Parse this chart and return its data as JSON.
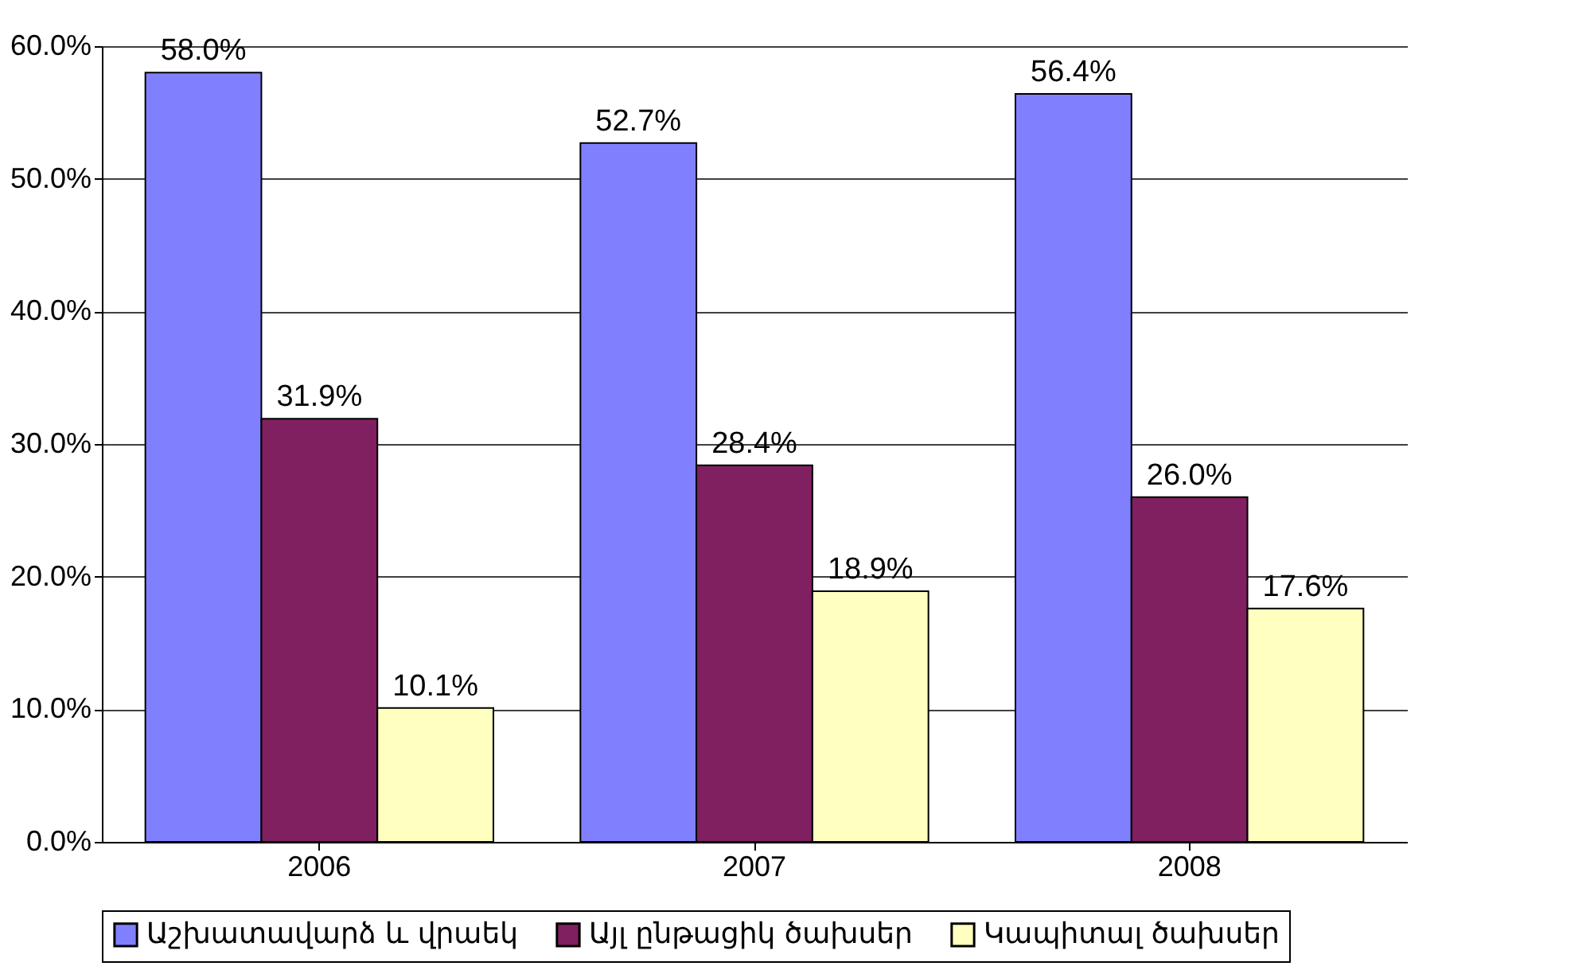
{
  "chart_data": {
    "type": "bar",
    "categories": [
      "2006",
      "2007",
      "2008"
    ],
    "series": [
      {
        "name": "Աշխատավարձ և վրաեկ",
        "color": "#8080ff",
        "values": [
          58.0,
          52.7,
          56.4
        ],
        "value_labels": [
          "58.0%",
          "52.7%",
          "56.4%"
        ]
      },
      {
        "name": "Այլ ընթացիկ ծախսեր",
        "color": "#802060",
        "values": [
          31.9,
          28.4,
          26.0
        ],
        "value_labels": [
          "31.9%",
          "28.4%",
          "26.0%"
        ]
      },
      {
        "name": "Կապիտալ ծախսեր",
        "color": "#ffffc0",
        "values": [
          10.1,
          18.9,
          17.6
        ],
        "value_labels": [
          "10.1%",
          "18.9%",
          "17.6%"
        ]
      }
    ],
    "ylim": [
      0,
      60
    ],
    "yticks": [
      {
        "value": 0,
        "label": "0.0%"
      },
      {
        "value": 10,
        "label": "10.0%"
      },
      {
        "value": 20,
        "label": "20.0%"
      },
      {
        "value": 30,
        "label": "30.0%"
      },
      {
        "value": 40,
        "label": "40.0%"
      },
      {
        "value": 50,
        "label": "50.0%"
      },
      {
        "value": 60,
        "label": "60.0%"
      }
    ],
    "grid": "y",
    "legend": "bottom"
  }
}
